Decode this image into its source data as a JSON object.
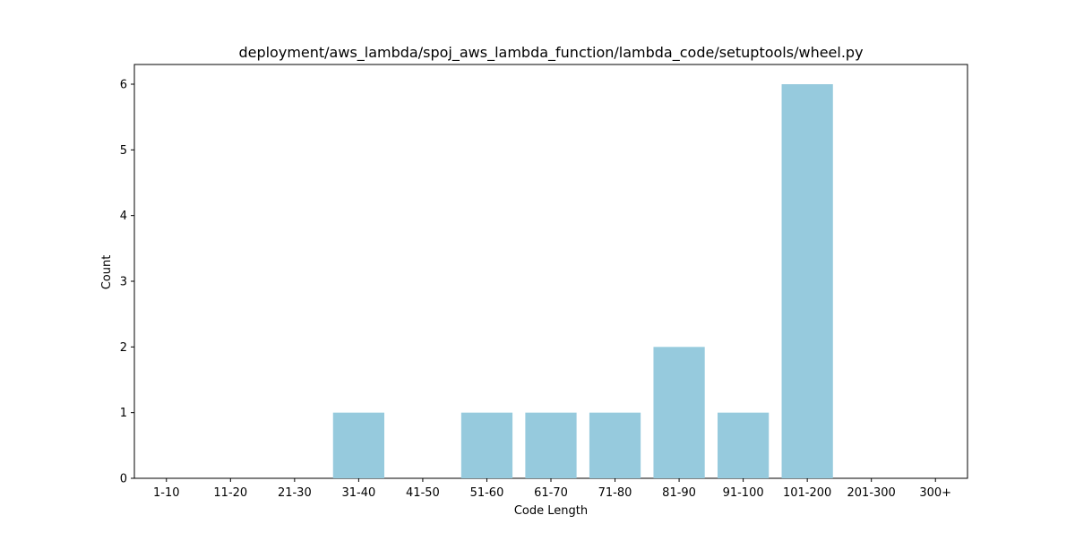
{
  "chart_data": {
    "type": "bar",
    "title": "deployment/aws_lambda/spoj_aws_lambda_function/lambda_code/setuptools/wheel.py",
    "xlabel": "Code Length",
    "ylabel": "Count",
    "categories": [
      "1-10",
      "11-20",
      "21-30",
      "31-40",
      "41-50",
      "51-60",
      "61-70",
      "71-80",
      "81-90",
      "91-100",
      "101-200",
      "201-300",
      "300+"
    ],
    "values": [
      0,
      0,
      0,
      1,
      0,
      1,
      1,
      1,
      2,
      1,
      6,
      0,
      0
    ],
    "ylim": [
      0,
      6.3
    ],
    "yticks": [
      0,
      1,
      2,
      3,
      4,
      5,
      6
    ],
    "grid": false,
    "bar_color": "#96cadd"
  }
}
